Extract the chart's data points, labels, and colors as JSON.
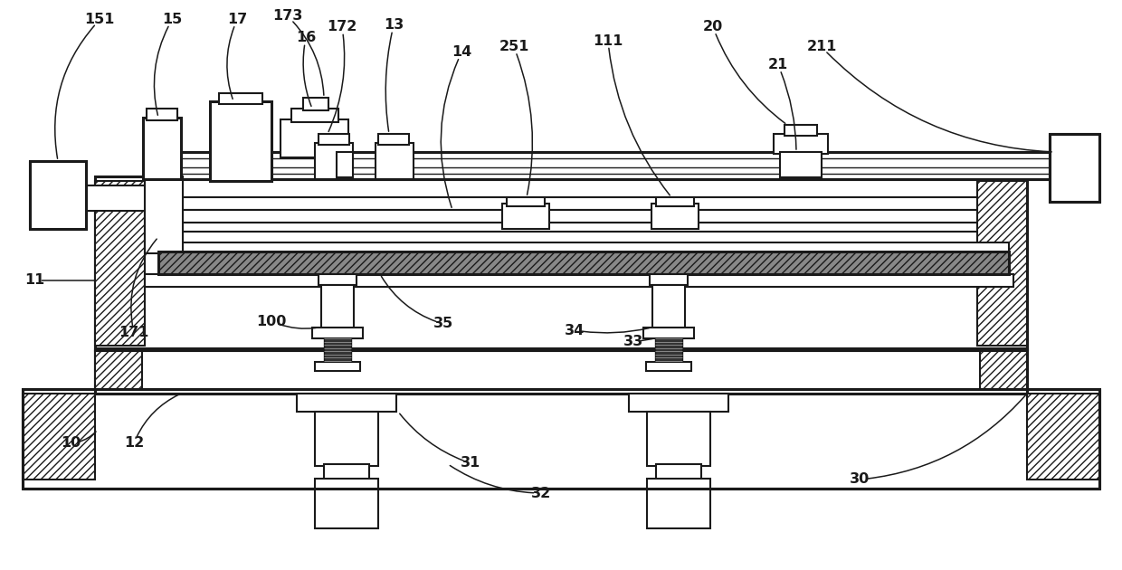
{
  "bg_color": "#ffffff",
  "lc": "#1a1a1a",
  "fig_width": 12.4,
  "fig_height": 6.3
}
